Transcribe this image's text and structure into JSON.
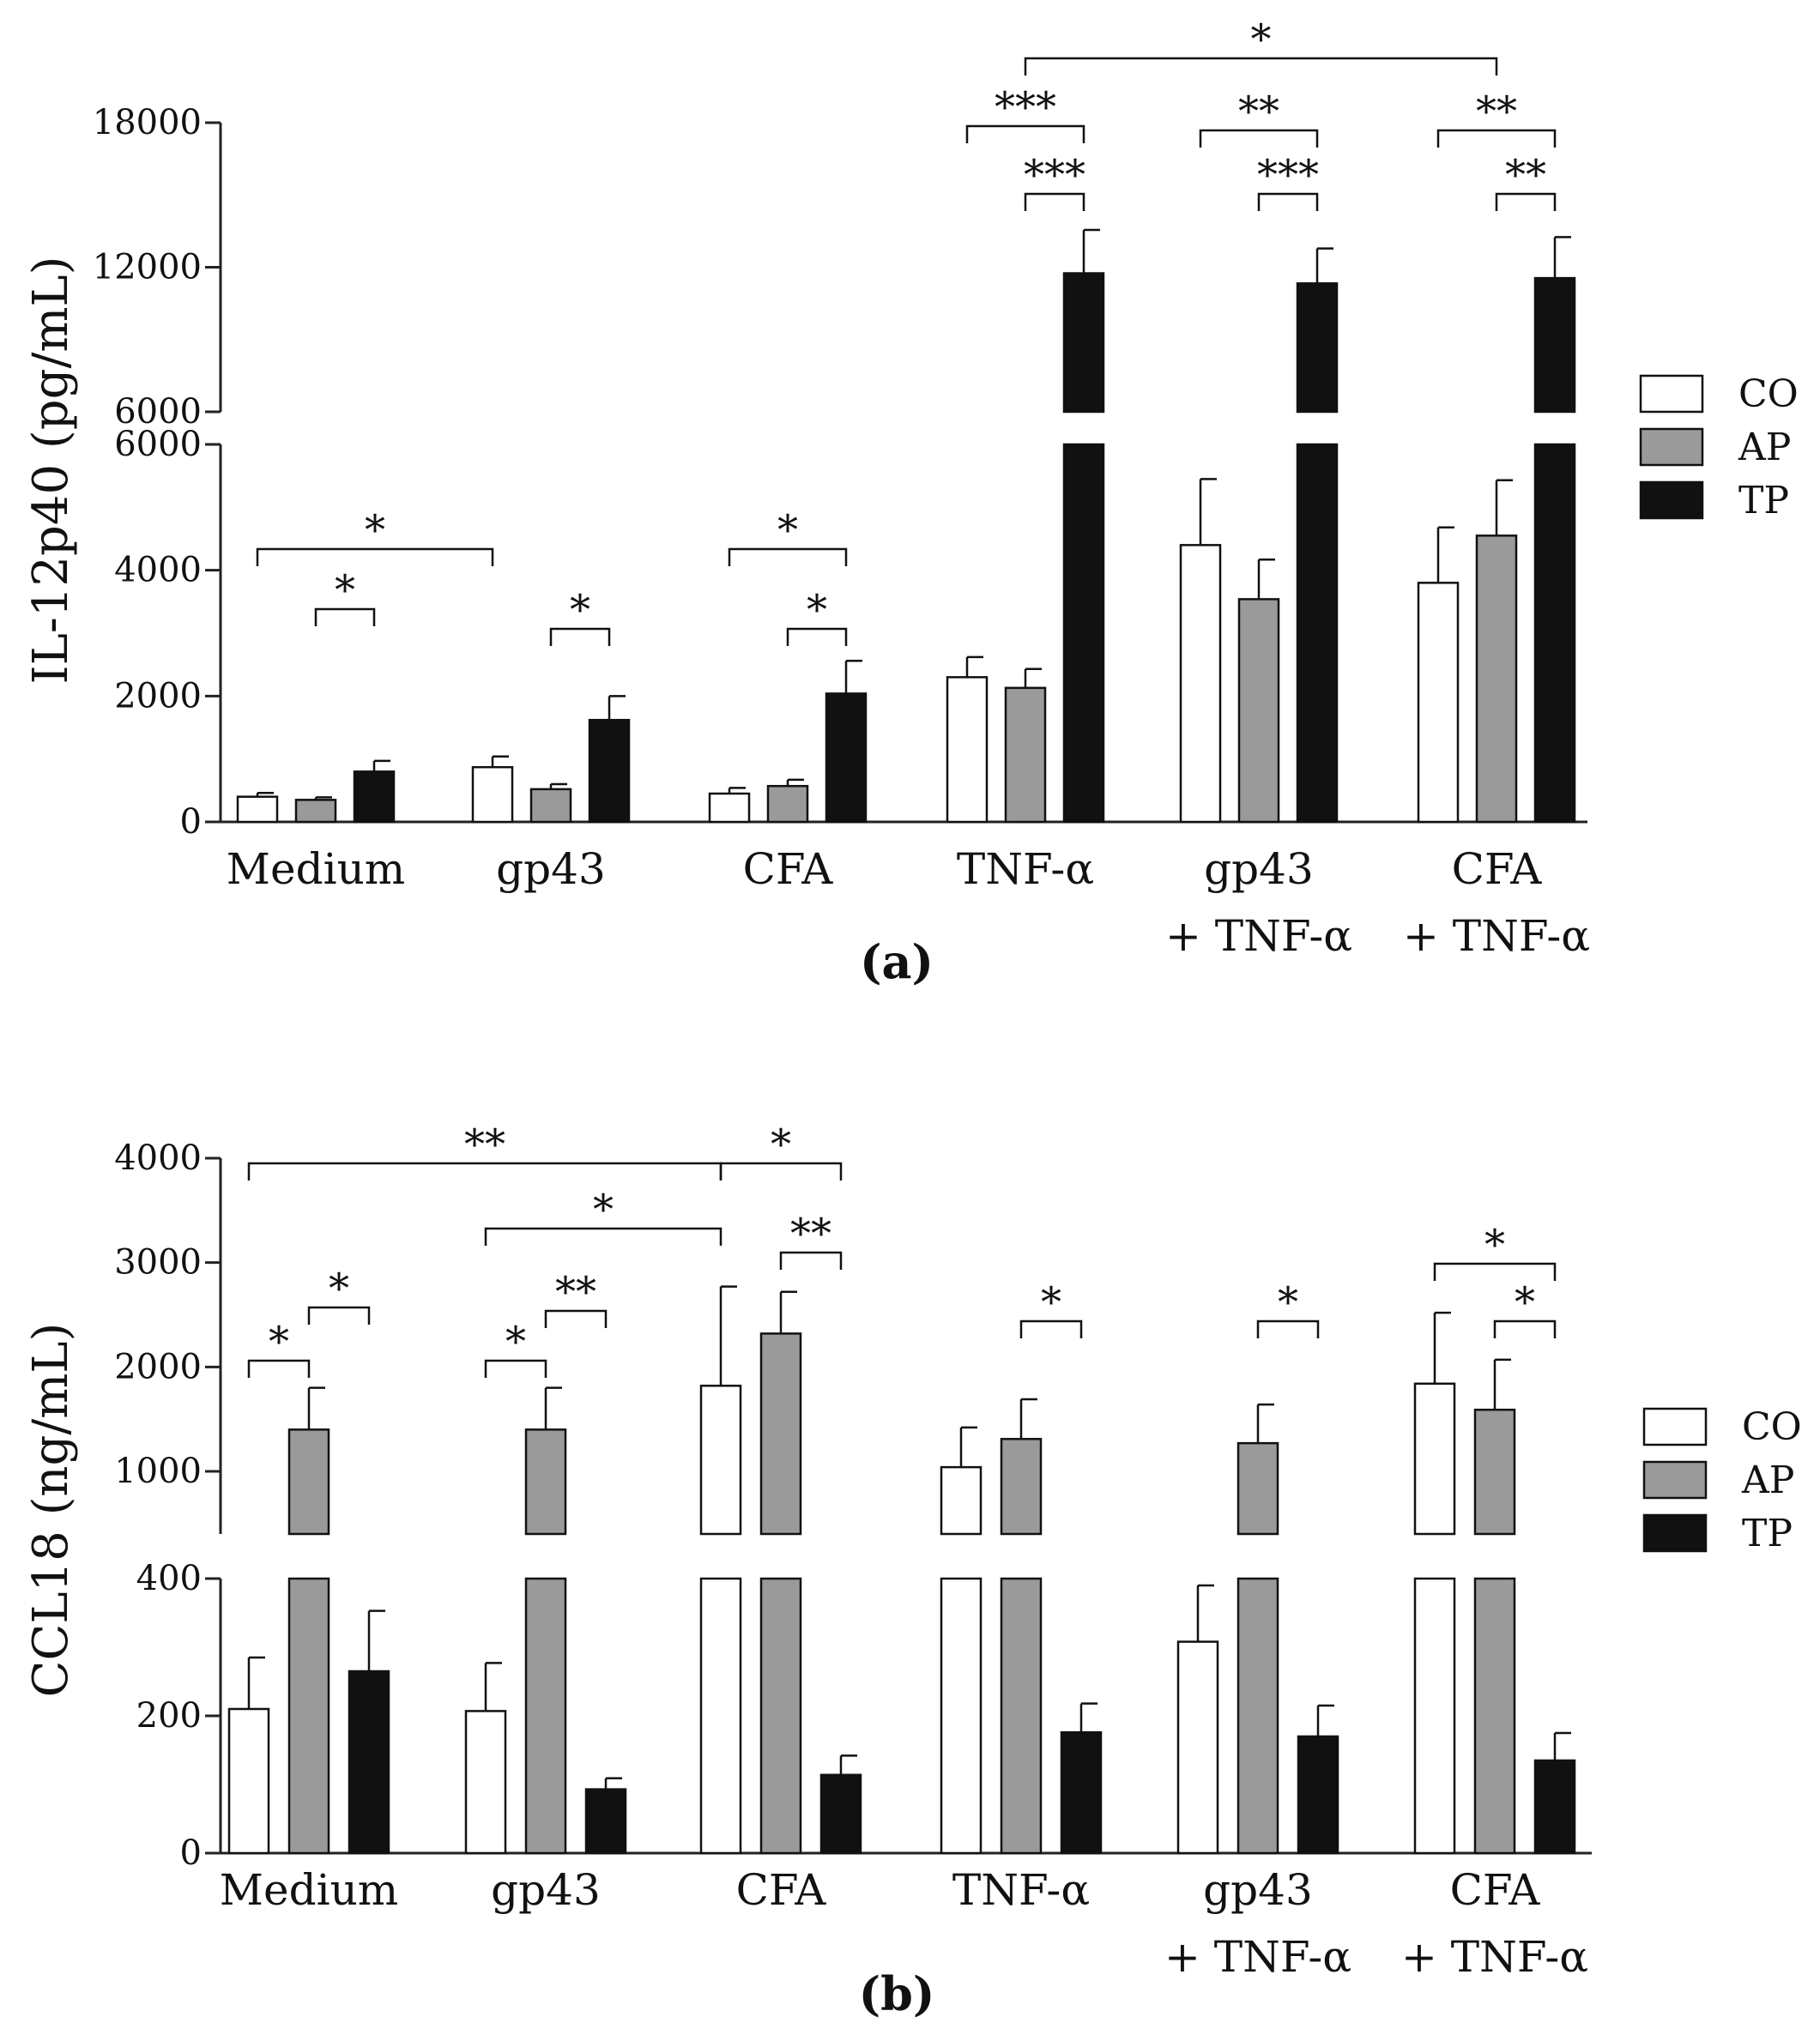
{
  "chart_data": [
    {
      "panel": "(a)",
      "type": "bar",
      "ylabel": "IL-12p40 (pg/mL)",
      "y_segments": [
        {
          "range": [
            0,
            6000
          ],
          "ticks": [
            0,
            2000,
            4000,
            6000
          ]
        },
        {
          "range": [
            6000,
            18000
          ],
          "ticks": [
            6000,
            12000,
            18000
          ]
        }
      ],
      "categories": [
        [
          "Medium"
        ],
        [
          "gp43"
        ],
        [
          "CFA"
        ],
        [
          "TNF-α"
        ],
        [
          "gp43",
          "+ TNF-α"
        ],
        [
          "CFA",
          "+ TNF-α"
        ]
      ],
      "series": [
        {
          "name": "CO",
          "color": "#ffffff",
          "values": [
            400,
            870,
            450,
            2300,
            4400,
            3800
          ],
          "errors": [
            60,
            170,
            90,
            320,
            1050,
            880
          ]
        },
        {
          "name": "AP",
          "color": "#9a9a9a",
          "values": [
            350,
            520,
            570,
            2130,
            3540,
            4550
          ],
          "errors": [
            40,
            80,
            100,
            300,
            630,
            880
          ]
        },
        {
          "name": "TP",
          "color": "#111111",
          "values": [
            800,
            1620,
            2040,
            11750,
            11330,
            11550
          ],
          "errors": [
            170,
            380,
            520,
            1800,
            1450,
            1700
          ]
        }
      ],
      "significance": [
        {
          "label": "*",
          "from": [
            0,
            0
          ],
          "to": [
            1,
            0
          ]
        },
        {
          "label": "*",
          "from": [
            0,
            1
          ],
          "to": [
            0,
            2
          ]
        },
        {
          "label": "*",
          "from": [
            1,
            1
          ],
          "to": [
            1,
            2
          ]
        },
        {
          "label": "*",
          "from": [
            2,
            0
          ],
          "to": [
            2,
            2
          ]
        },
        {
          "label": "*",
          "from": [
            2,
            1
          ],
          "to": [
            2,
            2
          ]
        },
        {
          "label": "***",
          "from": [
            3,
            0
          ],
          "to": [
            3,
            2
          ]
        },
        {
          "label": "***",
          "from": [
            3,
            1
          ],
          "to": [
            3,
            2
          ]
        },
        {
          "label": "**",
          "from": [
            4,
            0
          ],
          "to": [
            4,
            2
          ]
        },
        {
          "label": "***",
          "from": [
            4,
            1
          ],
          "to": [
            4,
            2
          ]
        },
        {
          "label": "**",
          "from": [
            5,
            0
          ],
          "to": [
            5,
            2
          ]
        },
        {
          "label": "**",
          "from": [
            5,
            1
          ],
          "to": [
            5,
            2
          ]
        },
        {
          "label": "*",
          "from": [
            3,
            1
          ],
          "to": [
            5,
            1
          ]
        }
      ]
    },
    {
      "panel": "(b)",
      "type": "bar",
      "ylabel": "CCL18 (ng/mL)",
      "y_segments": [
        {
          "range": [
            0,
            400
          ],
          "ticks": [
            0,
            200,
            400
          ]
        },
        {
          "range": [
            400,
            4000
          ],
          "ticks": [
            1000,
            2000,
            3000,
            4000
          ]
        }
      ],
      "categories": [
        [
          "Medium"
        ],
        [
          "gp43"
        ],
        [
          "CFA"
        ],
        [
          "TNF-α"
        ],
        [
          "gp43",
          "+ TNF-α"
        ],
        [
          "CFA",
          "+ TNF-α"
        ]
      ],
      "series": [
        {
          "name": "CO",
          "color": "#ffffff",
          "values": [
            210,
            207,
            1820,
            1040,
            308,
            1840
          ],
          "errors": [
            75,
            70,
            950,
            380,
            82,
            680
          ]
        },
        {
          "name": "AP",
          "color": "#9a9a9a",
          "values": [
            1400,
            1400,
            2320,
            1310,
            1270,
            1590
          ],
          "errors": [
            400,
            400,
            400,
            380,
            370,
            480
          ]
        },
        {
          "name": "TP",
          "color": "#111111",
          "values": [
            265,
            93,
            114,
            176,
            170,
            135
          ],
          "errors": [
            88,
            16,
            28,
            42,
            45,
            40
          ]
        }
      ],
      "significance": [
        {
          "label": "**",
          "from": [
            0,
            0
          ],
          "to": [
            2,
            0
          ]
        },
        {
          "label": "*",
          "from": [
            2,
            0
          ],
          "to": [
            2,
            2
          ]
        },
        {
          "label": "*",
          "from": [
            1,
            0
          ],
          "to": [
            2,
            0
          ]
        },
        {
          "label": "**",
          "from": [
            2,
            1
          ],
          "to": [
            2,
            2
          ]
        },
        {
          "label": "*",
          "from": [
            0,
            0
          ],
          "to": [
            0,
            1
          ]
        },
        {
          "label": "*",
          "from": [
            0,
            1
          ],
          "to": [
            0,
            2
          ]
        },
        {
          "label": "*",
          "from": [
            1,
            0
          ],
          "to": [
            1,
            1
          ]
        },
        {
          "label": "**",
          "from": [
            1,
            1
          ],
          "to": [
            1,
            2
          ]
        },
        {
          "label": "*",
          "from": [
            3,
            1
          ],
          "to": [
            3,
            2
          ]
        },
        {
          "label": "*",
          "from": [
            4,
            1
          ],
          "to": [
            4,
            2
          ]
        },
        {
          "label": "*",
          "from": [
            5,
            0
          ],
          "to": [
            5,
            2
          ]
        },
        {
          "label": "*",
          "from": [
            5,
            1
          ],
          "to": [
            5,
            2
          ]
        }
      ]
    }
  ]
}
